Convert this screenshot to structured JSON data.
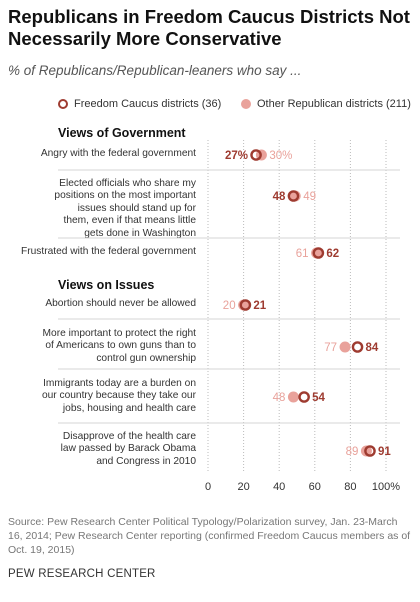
{
  "title": "Republicans in Freedom Caucus Districts Not Necessarily More Conservative",
  "subtitle": "% of Republicans/Republican-leaners who say ...",
  "legend": {
    "freedom": "Freedom Caucus districts (36)",
    "other": "Other Republican districts (211)"
  },
  "sections": {
    "government": "Views of Government",
    "issues": "Views on Issues"
  },
  "colors": {
    "freedom": "#9e3b30",
    "other": "#e9a29b",
    "grid": "#bbbbbb"
  },
  "chart_data": {
    "type": "dot",
    "xlim": [
      0,
      100
    ],
    "ticks": [
      "0",
      "20",
      "40",
      "60",
      "80",
      "100%"
    ],
    "series": [
      {
        "name": "Freedom Caucus districts (36)"
      },
      {
        "name": "Other Republican districts (211)"
      }
    ],
    "rows": [
      {
        "label": "Angry with the federal government",
        "freedom": 27,
        "other": 30,
        "freedom_label": "27%",
        "other_label": "30%"
      },
      {
        "label": "Elected officials who share my positions on the most important issues should stand up for them, even if that means little gets done in Washington",
        "freedom": 48,
        "other": 49,
        "freedom_label": "48",
        "other_label": "49"
      },
      {
        "label": "Frustrated with the federal government",
        "freedom": 62,
        "other": 61,
        "freedom_label": "62",
        "other_label": "61"
      },
      {
        "label": "Abortion should never be allowed",
        "freedom": 21,
        "other": 20,
        "freedom_label": "21",
        "other_label": "20"
      },
      {
        "label": "More important to protect the right of Americans to own guns than to control gun ownership",
        "freedom": 84,
        "other": 77,
        "freedom_label": "84",
        "other_label": "77"
      },
      {
        "label": "Immigrants today are a burden on our country because they take our jobs, housing and health care",
        "freedom": 54,
        "other": 48,
        "freedom_label": "54",
        "other_label": "48"
      },
      {
        "label": "Disapprove of the health care law passed by Barack Obama and Congress in 2010",
        "freedom": 91,
        "other": 89,
        "freedom_label": "91",
        "other_label": "89"
      }
    ]
  },
  "source": "Source: Pew Research Center Political Typology/Polarization survey, Jan. 23-March 16, 2014; Pew Research Center reporting (confirmed Freedom Caucus members as of Oct. 19, 2015)",
  "brand": "PEW RESEARCH CENTER"
}
